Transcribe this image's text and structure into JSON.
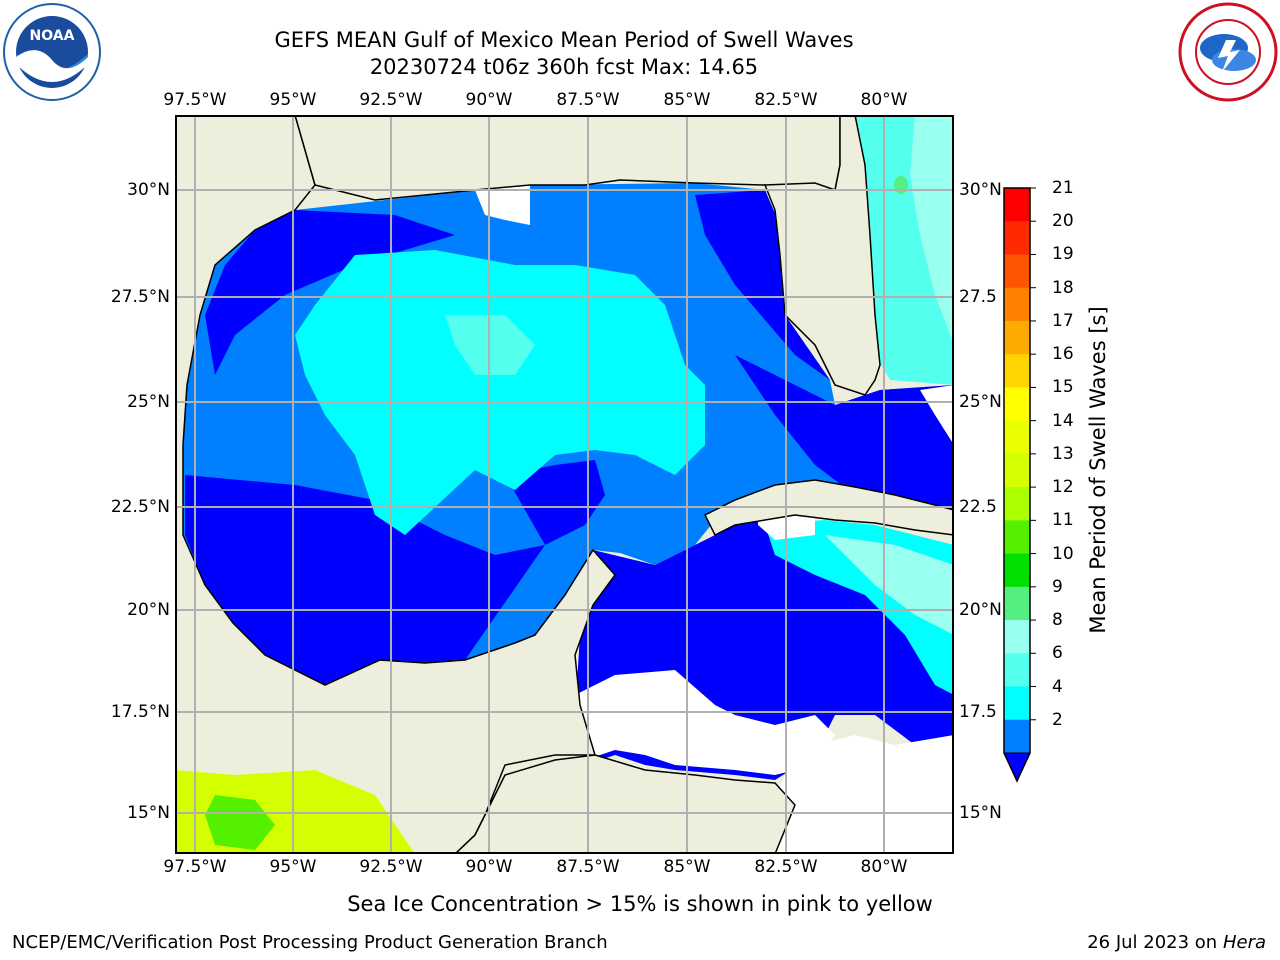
{
  "title": {
    "line1": "GEFS MEAN Gulf of Mexico Mean Period of Swell Waves",
    "line2": "20230724 t06z 360h fcst   Max: 14.65"
  },
  "logos": {
    "left": {
      "name": "noaa-logo",
      "text": "NOAA"
    },
    "right": {
      "name": "nws-logo"
    }
  },
  "map": {
    "lon_ticks_top": [
      "97.5°W",
      "95°W",
      "92.5°W",
      "90°W",
      "87.5°W",
      "85°W",
      "82.5°W",
      "80°W"
    ],
    "lon_ticks_bottom": [
      "97.5°W",
      "95°W",
      "92.5°W",
      "90°W",
      "87.5°W",
      "85°W",
      "82.5°W",
      "80°W"
    ],
    "lat_ticks_left": [
      "30°N",
      "27.5°N",
      "25°N",
      "22.5°N",
      "20°N",
      "17.5°N",
      "15°N"
    ],
    "lat_ticks_right": [
      "30°N",
      "27.5",
      "25°N",
      "22.5",
      "20°N",
      "17.5",
      "15°N"
    ],
    "colors": {
      "land": "#eeeedc",
      "coast": "#000000",
      "grid": "#b0b0b0",
      "no_data": "#ffffff"
    }
  },
  "colorbar": {
    "label": "Mean Period of Swell Waves [s]",
    "ticks": [
      "21",
      "20",
      "19",
      "18",
      "17",
      "16",
      "15",
      "14",
      "13",
      "12",
      "11",
      "10",
      "9",
      "8",
      "6",
      "4",
      "2"
    ],
    "colors": [
      "#ff0000",
      "#ff2a00",
      "#ff5500",
      "#ff7f00",
      "#ffaa00",
      "#ffd400",
      "#ffff00",
      "#eaff00",
      "#d4ff00",
      "#aaff00",
      "#55f000",
      "#00e000",
      "#55ee80",
      "#99ffee",
      "#55ffee",
      "#00ffff",
      "#0080ff",
      "#0000ff"
    ]
  },
  "note": "Sea Ice Concentration > 15% is shown in pink to yellow",
  "footer": {
    "left": "NCEP/EMC/Verification Post Processing Product Generation Branch",
    "right_prefix": "26 Jul 2023 on ",
    "right_machine": "Hera"
  }
}
